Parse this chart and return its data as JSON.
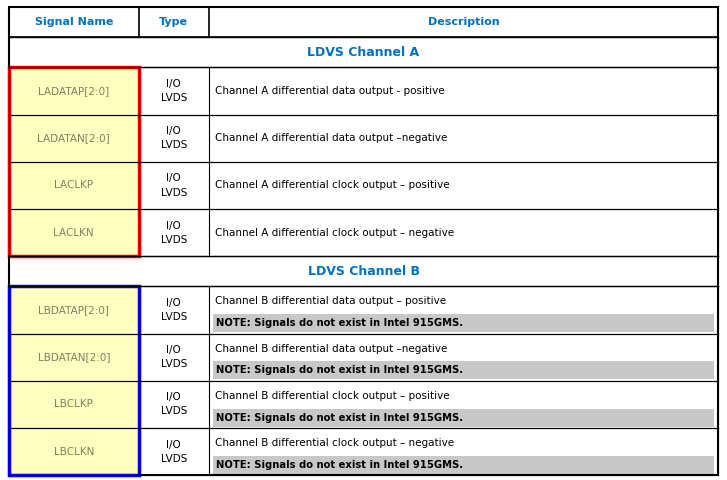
{
  "title_row": [
    "Signal Name",
    "Type",
    "Description"
  ],
  "header_text_color": "#0070C0",
  "section_A": "LDVS Channel A",
  "section_B": "LDVS Channel B",
  "section_text_color": "#0070C0",
  "cell_bg_signal": "#FFFFC0",
  "cell_bg_white": "#ffffff",
  "note_bg": "#C8C8C8",
  "border_color_A": "#FF0000",
  "border_color_B": "#0000FF",
  "signal_text_color": "#808060",
  "rows_A": [
    [
      "LADATAP[2:0]",
      "I/O\nLVDS",
      "Channel A differential data output - positive",
      ""
    ],
    [
      "LADATAN[2:0]",
      "I/O\nLVDS",
      "Channel A differential data output –negative",
      ""
    ],
    [
      "LACLKP",
      "I/O\nLVDS",
      "Channel A differential clock output – positive",
      ""
    ],
    [
      "LACLKN",
      "I/O\nLVDS",
      "Channel A differential clock output – negative",
      ""
    ]
  ],
  "rows_B": [
    [
      "LBDATAP[2:0]",
      "I/O\nLVDS",
      "Channel B differential data output – positive",
      "NOTE: Signals do not exist in Intel 915GMS."
    ],
    [
      "LBDATAN[2:0]",
      "I/O\nLVDS",
      "Channel B differential data output –negative",
      "NOTE: Signals do not exist in Intel 915GMS."
    ],
    [
      "LBCLKP",
      "I/O\nLVDS",
      "Channel B differential clock output – positive",
      "NOTE: Signals do not exist in Intel 915GMS."
    ],
    [
      "LBCLKN",
      "I/O\nLVDS",
      "Channel B differential clock output – negative",
      "NOTE: Signals do not exist in Intel 915GMS."
    ]
  ],
  "fig_bg": "#ffffff",
  "grid_color": "#000000",
  "fig_w": 7.27,
  "fig_h": 4.8,
  "dpi": 100
}
